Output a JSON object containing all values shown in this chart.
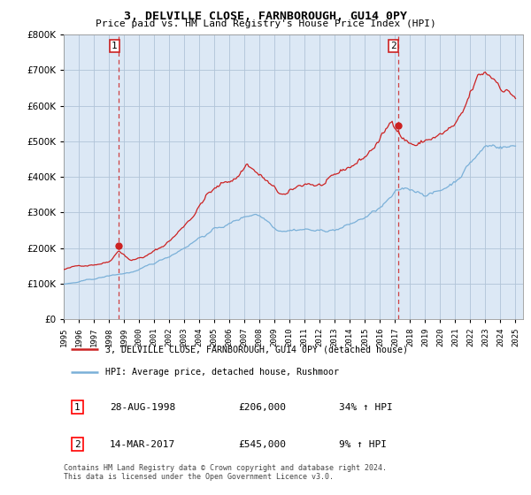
{
  "title": "3, DELVILLE CLOSE, FARNBOROUGH, GU14 0PY",
  "subtitle": "Price paid vs. HM Land Registry's House Price Index (HPI)",
  "legend_label_red": "3, DELVILLE CLOSE, FARNBOROUGH, GU14 0PY (detached house)",
  "legend_label_blue": "HPI: Average price, detached house, Rushmoor",
  "footnote1": "Contains HM Land Registry data © Crown copyright and database right 2024.",
  "footnote2": "This data is licensed under the Open Government Licence v3.0.",
  "annotation1_num": "1",
  "annotation1_date": "28-AUG-1998",
  "annotation1_price": "£206,000",
  "annotation1_hpi": "34% ↑ HPI",
  "annotation2_num": "2",
  "annotation2_date": "14-MAR-2017",
  "annotation2_price": "£545,000",
  "annotation2_hpi": "9% ↑ HPI",
  "ylim": [
    0,
    800000
  ],
  "yticks": [
    0,
    100000,
    200000,
    300000,
    400000,
    500000,
    600000,
    700000,
    800000
  ],
  "plot_bg_color": "#dce8f5",
  "background_color": "#ffffff",
  "grid_color": "#b0c4d8",
  "red_color": "#cc2222",
  "blue_color": "#7ab0d8",
  "marker1_year": 1998.67,
  "marker2_year": 2017.2,
  "marker1_price": 206000,
  "marker2_price": 545000,
  "xlim_left": 1995.0,
  "xlim_right": 2025.5,
  "xtick_years": [
    1995,
    1996,
    1997,
    1998,
    1999,
    2000,
    2001,
    2002,
    2003,
    2004,
    2005,
    2006,
    2007,
    2008,
    2009,
    2010,
    2011,
    2012,
    2013,
    2014,
    2015,
    2016,
    2017,
    2018,
    2019,
    2020,
    2021,
    2022,
    2023,
    2024,
    2025
  ]
}
